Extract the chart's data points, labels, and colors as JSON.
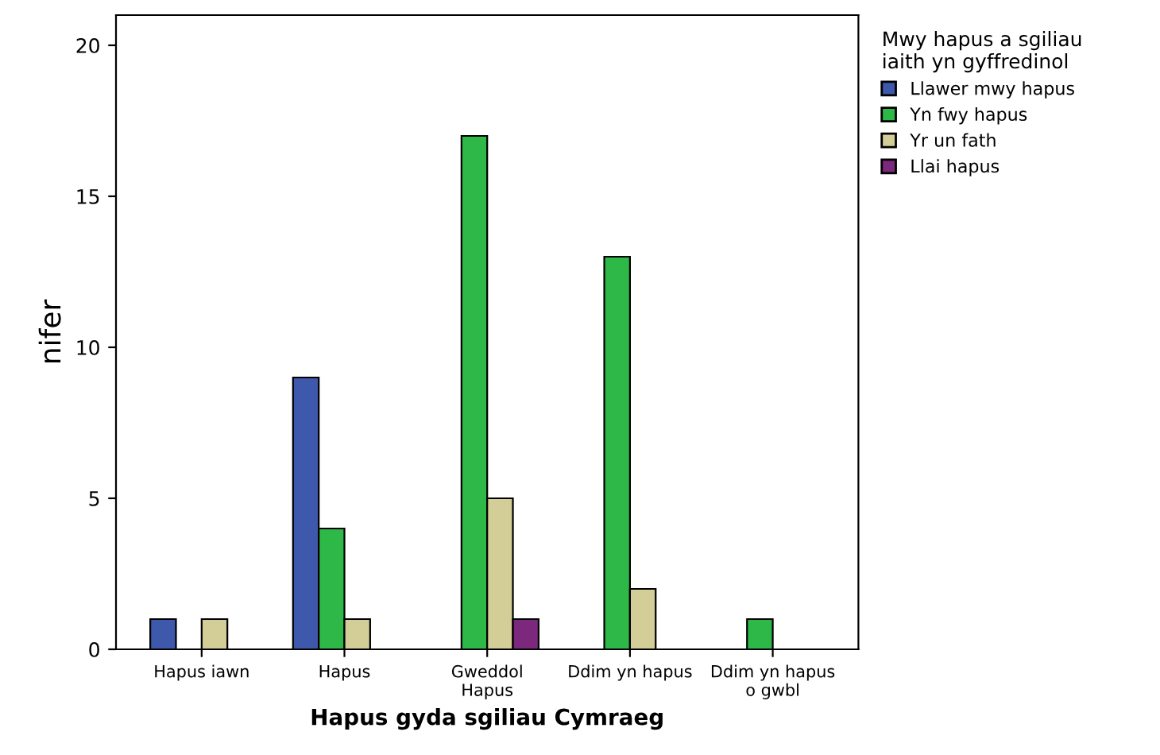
{
  "chart_data": {
    "type": "bar",
    "xlabel": "Hapus gyda sgiliau Cymraeg",
    "ylabel": "nifer",
    "legend_title": "Mwy hapus a sgiliau\niaith yn gyffredinol",
    "categories": [
      "Hapus iawn",
      "Hapus",
      "Gweddol\nHapus",
      "Ddim yn hapus",
      "Ddim yn hapus\no gwbl"
    ],
    "series": [
      {
        "name": "Llawer mwy hapus",
        "color": "#3e58ac",
        "values": [
          1,
          9,
          null,
          null,
          null
        ]
      },
      {
        "name": "Yn fwy hapus",
        "color": "#2eb848",
        "values": [
          null,
          4,
          17,
          13,
          1
        ]
      },
      {
        "name": "Yr un fath",
        "color": "#d3ce97",
        "values": [
          1,
          1,
          5,
          2,
          null
        ]
      },
      {
        "name": "Llai hapus",
        "color": "#7c287d",
        "values": [
          null,
          null,
          1,
          null,
          null
        ]
      }
    ],
    "ylim": [
      0,
      21
    ],
    "yticks": [
      0,
      5,
      10,
      15,
      20
    ],
    "grid": false,
    "legend": "right"
  }
}
